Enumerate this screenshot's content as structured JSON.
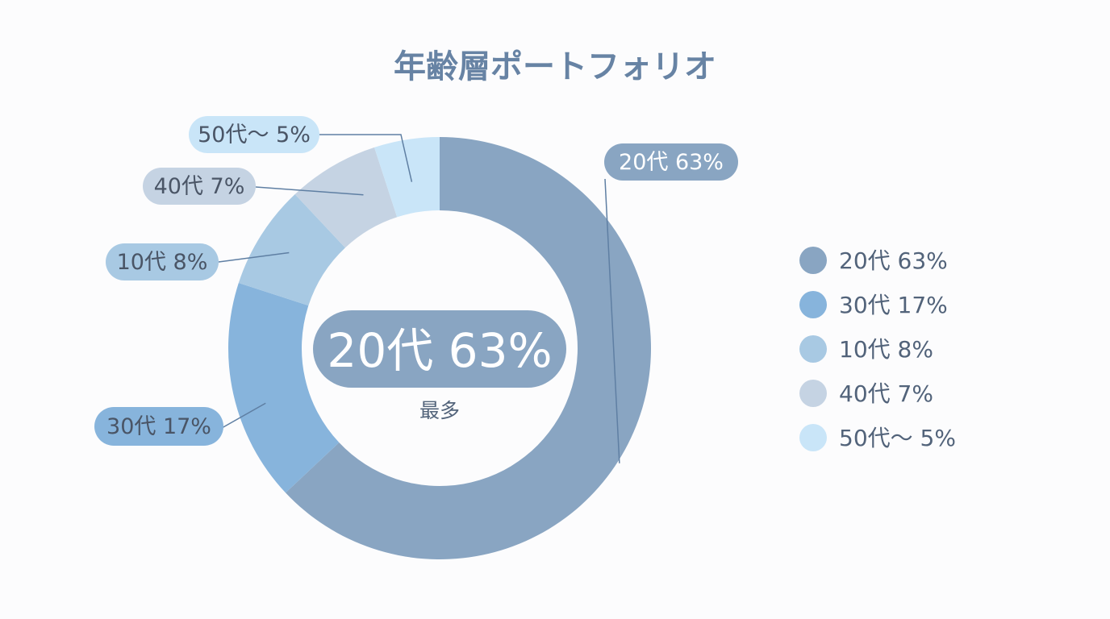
{
  "chart_data": {
    "type": "pie",
    "title": "年齢層ポートフォリオ",
    "categories": [
      "20代",
      "30代",
      "10代",
      "40代",
      "50代～"
    ],
    "values": [
      63,
      17,
      8,
      7,
      5
    ],
    "unit": "%",
    "colors": [
      "#89a5c2",
      "#87b4dc",
      "#a8c9e3",
      "#c5d3e3",
      "#c9e5f8"
    ],
    "slice_labels": [
      "20代 63%",
      "30代 17%",
      "10代 8%",
      "40代 7%",
      "50代～ 5%"
    ],
    "legend_labels": [
      "20代  63%",
      "30代  17%",
      "10代  8%",
      "40代  7%",
      "50代～ 5%"
    ],
    "legend_position": "right",
    "center_label": "20代 63%",
    "center_sublabel": "最多"
  },
  "style": {
    "title_color": "#6783a4",
    "text_color": "#52637a",
    "callout_text_light": "#ffffff",
    "callout_text_dark": "#4a5566",
    "leader_color": "#5f7fa3",
    "center_badge_color": "#89a5c2"
  }
}
